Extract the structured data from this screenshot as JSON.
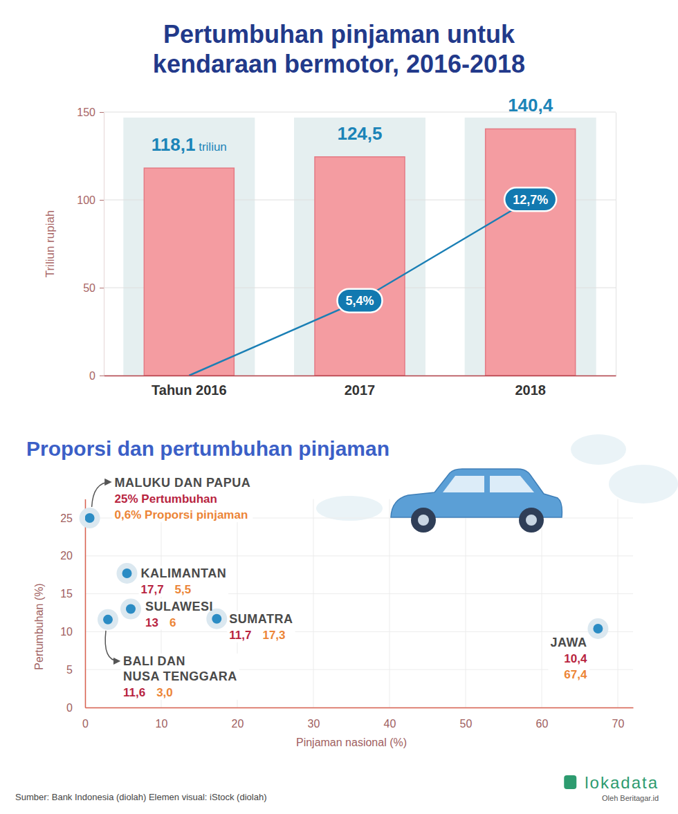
{
  "chart_data": [
    {
      "type": "bar",
      "title": "Pertumbuhan pinjaman untuk kendaraan bermotor, 2016-2018",
      "y_label": "Triliun rupiah",
      "categories": [
        "Tahun 2016",
        "2017",
        "2018"
      ],
      "ylim": [
        0,
        150
      ],
      "yticks": [
        0,
        50,
        100,
        150
      ],
      "y2lim": [
        0,
        19
      ],
      "y2ticks": [],
      "grid": true,
      "data_labels": true,
      "series": [
        {
          "type": "bar",
          "color": "#f49ca1",
          "values": [
            118.1,
            124.5,
            140.4
          ],
          "value_labels": [
            "118,1 triliun",
            "124,5",
            "140,4"
          ]
        },
        {
          "type": "line",
          "axis": "y2",
          "color": "#1a7fb5",
          "values": [
            0,
            5.4,
            12.7
          ],
          "value_labels": [
            null,
            "5,4%",
            "12,7%"
          ]
        }
      ]
    },
    {
      "type": "scatter",
      "title": "Proporsi dan pertumbuhan pinjaman",
      "x_label": "Pinjaman nasional (%)",
      "y_label": "Pertumbuhan (%)",
      "xlim": [
        0,
        72
      ],
      "xticks": [
        0,
        10,
        20,
        30,
        40,
        50,
        60,
        70
      ],
      "ylim": [
        0,
        27.5
      ],
      "yticks": [
        0,
        5,
        10,
        15,
        20,
        25
      ],
      "grid": true,
      "data_labels": true,
      "series": [
        {
          "color": "#2b8cc4",
          "marker": "circle",
          "point_labels": [
            "MALUKU DAN PAPUA",
            "KALIMANTAN",
            "SULAWESI",
            "SUMATRA",
            "BALI DAN NUSA TENGGARA",
            "JAWA"
          ],
          "x": [
            0.6,
            5.5,
            6,
            17.3,
            3.0,
            67.4
          ],
          "values": [
            25,
            17.7,
            13,
            11.7,
            11.6,
            10.4
          ],
          "value_labels": [
            "25% Pertumbuhan",
            "17,7",
            "13",
            "11,7",
            "11,6",
            "10,4"
          ],
          "x_value_labels": [
            "0,6% Proporsi pinjaman",
            "5,5",
            "6",
            "17,3",
            "3,0",
            "67,4"
          ]
        }
      ]
    }
  ],
  "footer": {
    "source": "Sumber: Bank Indonesia (diolah) Elemen visual: iStock (diolah)",
    "brand": "lokadata",
    "byline": "Oleh Beritagar.id"
  }
}
